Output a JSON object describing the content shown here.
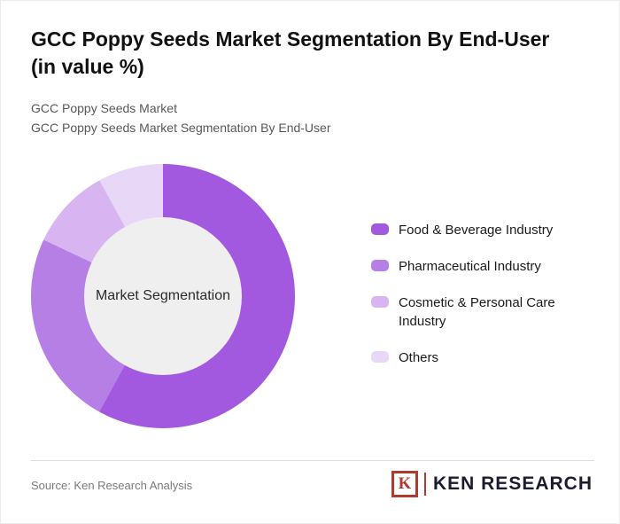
{
  "header": {
    "title_line1": "GCC Poppy Seeds Market Segmentation By End-User",
    "title_line2": "(in value %)",
    "subtitle1": "GCC Poppy Seeds Market",
    "subtitle2": "GCC Poppy Seeds Market Segmentation By End-User"
  },
  "chart_data": {
    "type": "pie",
    "variant": "donut",
    "title": "GCC Poppy Seeds Market Segmentation By End-User (in value %)",
    "center_label": "Market Segmentation",
    "categories": [
      "Food & Beverage Industry",
      "Pharmaceutical Industry",
      "Cosmetic & Personal Care Industry",
      "Others"
    ],
    "values": [
      58,
      24,
      10,
      8
    ],
    "colors": [
      "#a259e0",
      "#b67fe6",
      "#d8b4f0",
      "#e9d7f8"
    ],
    "center_fill": "#efefef",
    "legend_position": "right"
  },
  "legend": {
    "items": [
      {
        "label": "Food & Beverage Industry",
        "color": "#a259e0"
      },
      {
        "label": "Pharmaceutical Industry",
        "color": "#b67fe6"
      },
      {
        "label": "Cosmetic & Personal Care Industry",
        "color": "#d8b4f0"
      },
      {
        "label": "Others",
        "color": "#e9d7f8"
      }
    ]
  },
  "footer": {
    "source": "Source: Ken Research Analysis",
    "logo": {
      "letter": "K",
      "text": "KEN RESEARCH"
    }
  }
}
